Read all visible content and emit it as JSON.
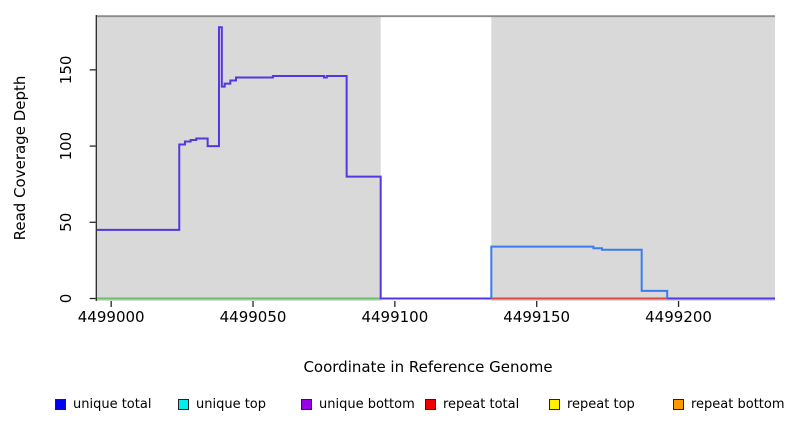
{
  "chart_data": {
    "type": "line",
    "subtype": "step-coverage-plot",
    "title": "",
    "xlabel": "Coordinate in Reference Genome",
    "ylabel": "Read Coverage Depth",
    "xlim": [
      4498995,
      4499234
    ],
    "ylim": [
      0,
      186
    ],
    "x_ticks": [
      "4499000",
      "4499050",
      "4499100",
      "4499150",
      "4499200"
    ],
    "x_tick_values": [
      4499000,
      4499050,
      4499100,
      4499150,
      4499200
    ],
    "y_ticks": [
      "0",
      "50",
      "100",
      "150"
    ],
    "y_tick_values": [
      0,
      50,
      100,
      150
    ],
    "grid": false,
    "legend_position": "bottom",
    "panel_color": "#d9d9d9",
    "panel_border_color": "#8c8c8c",
    "axis_color": "#262626",
    "background_panels": [
      {
        "name": "covered-region-left",
        "x_start": 4498995,
        "x_end": 4499095,
        "color": "#d9d9d9"
      },
      {
        "name": "covered-region-right",
        "x_start": 4499134,
        "x_end": 4499234,
        "color": "#d9d9d9"
      }
    ],
    "series": [
      {
        "name": "baseline-left-green",
        "color": "#69c069",
        "step_points": [
          [
            4498995,
            0
          ],
          [
            4499095,
            0
          ]
        ]
      },
      {
        "name": "unique-coverage-left",
        "color": "#5636e0",
        "step_points": [
          [
            4498995,
            45
          ],
          [
            4499024,
            101
          ],
          [
            4499026,
            103
          ],
          [
            4499028,
            104
          ],
          [
            4499030,
            105
          ],
          [
            4499034,
            100
          ],
          [
            4499038,
            178
          ],
          [
            4499039,
            139
          ],
          [
            4499040,
            141
          ],
          [
            4499042,
            143
          ],
          [
            4499044,
            145
          ],
          [
            4499057,
            146
          ],
          [
            4499075,
            145
          ],
          [
            4499076,
            146
          ],
          [
            4499083,
            80
          ],
          [
            4499095,
            0
          ],
          [
            4499234,
            0
          ]
        ]
      },
      {
        "name": "repeat-total-baseline-right",
        "color": "#e04848",
        "step_points": [
          [
            4499134,
            0
          ],
          [
            4499196,
            0
          ]
        ]
      },
      {
        "name": "unique-total-right",
        "color": "#3a7cee",
        "step_points": [
          [
            4499134,
            0
          ],
          [
            4499134,
            34
          ],
          [
            4499170,
            33
          ],
          [
            4499173,
            32
          ],
          [
            4499187,
            5
          ],
          [
            4499196,
            0
          ]
        ]
      }
    ],
    "legend": [
      {
        "label": "unique total",
        "color": "#0000ee"
      },
      {
        "label": "unique top",
        "color": "#00eeee"
      },
      {
        "label": "unique bottom",
        "color": "#9900e6"
      },
      {
        "label": "repeat total",
        "color": "#ee0000"
      },
      {
        "label": "repeat top",
        "color": "#ffee00"
      },
      {
        "label": "repeat bottom",
        "color": "#ff9900"
      }
    ]
  }
}
